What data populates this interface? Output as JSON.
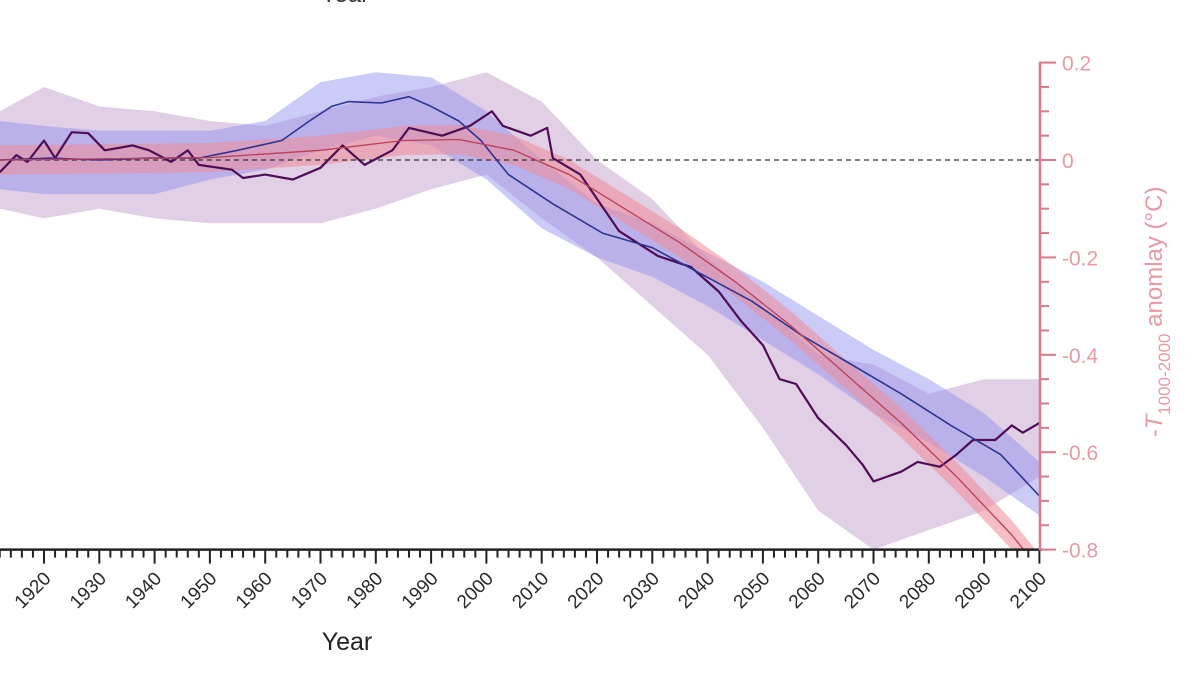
{
  "chart_data": {
    "type": "line",
    "top_clipped_label": "Year",
    "xlabel": "Year",
    "ylabel": {
      "prefix": "-T",
      "subscript": "1000-2000",
      "suffix": " anomlay (°C)"
    },
    "xlim": [
      1912,
      2100
    ],
    "ylim": [
      -0.8,
      0.2
    ],
    "x_ticks": [
      "1920",
      "1930",
      "1940",
      "1950",
      "1960",
      "1970",
      "1980",
      "1990",
      "2000",
      "2010",
      "2020",
      "2030",
      "2040",
      "2050",
      "2060",
      "2070",
      "2080",
      "2090",
      "2100"
    ],
    "y_ticks": [
      "0.2",
      "0",
      "-0.2",
      "-0.4",
      "-0.6",
      "-0.8"
    ],
    "reference_line": {
      "y": 0,
      "style": "dashed"
    },
    "colors": {
      "purple_line": "#4e0d55",
      "blue_line": "#2e3590",
      "red_line": "#b8405a",
      "purple_band": "#c9a8d2",
      "blue_band": "#8c8cf0",
      "red_band": "#f08a96",
      "right_axis": "#d9798a",
      "bottom_axis": "#222222"
    },
    "bands": [
      {
        "id": "purple",
        "x": [
          1912,
          1920,
          1930,
          1940,
          1950,
          1960,
          1970,
          1980,
          1990,
          2000,
          2010,
          2020,
          2030,
          2040,
          2050,
          2060,
          2070,
          2080,
          2090,
          2100
        ],
        "upper": [
          0.1,
          0.15,
          0.11,
          0.1,
          0.08,
          0.07,
          0.1,
          0.13,
          0.15,
          0.18,
          0.12,
          0.0,
          -0.08,
          -0.2,
          -0.3,
          -0.4,
          -0.42,
          -0.48,
          -0.45,
          -0.45
        ],
        "lower": [
          -0.1,
          -0.12,
          -0.1,
          -0.12,
          -0.13,
          -0.13,
          -0.13,
          -0.1,
          -0.06,
          -0.03,
          -0.12,
          -0.2,
          -0.3,
          -0.4,
          -0.55,
          -0.72,
          -0.8,
          -0.76,
          -0.72,
          -0.65
        ]
      },
      {
        "id": "blue",
        "x": [
          1912,
          1920,
          1930,
          1940,
          1950,
          1960,
          1970,
          1980,
          1990,
          2000,
          2010,
          2020,
          2030,
          2040,
          2050,
          2060,
          2070,
          2080,
          2090,
          2100
        ],
        "upper": [
          0.08,
          0.07,
          0.06,
          0.06,
          0.06,
          0.08,
          0.16,
          0.18,
          0.17,
          0.1,
          0.0,
          -0.09,
          -0.13,
          -0.19,
          -0.25,
          -0.32,
          -0.39,
          -0.45,
          -0.52,
          -0.62
        ],
        "lower": [
          -0.06,
          -0.07,
          -0.07,
          -0.07,
          -0.04,
          -0.02,
          0.02,
          0.05,
          0.03,
          -0.04,
          -0.14,
          -0.2,
          -0.24,
          -0.3,
          -0.37,
          -0.44,
          -0.52,
          -0.58,
          -0.65,
          -0.73
        ]
      },
      {
        "id": "red",
        "x": [
          1912,
          1950,
          1970,
          1985,
          1995,
          2005,
          2015,
          2025,
          2035,
          2045,
          2055,
          2065,
          2075,
          2085,
          2095,
          2100
        ],
        "upper": [
          0.03,
          0.035,
          0.05,
          0.07,
          0.072,
          0.05,
          0.0,
          -0.07,
          -0.14,
          -0.22,
          -0.31,
          -0.41,
          -0.51,
          -0.62,
          -0.74,
          -0.81
        ],
        "lower": [
          -0.03,
          -0.025,
          -0.01,
          0.01,
          0.012,
          -0.01,
          -0.06,
          -0.13,
          -0.2,
          -0.28,
          -0.37,
          -0.47,
          -0.57,
          -0.68,
          -0.8,
          -0.87
        ]
      }
    ],
    "series": [
      {
        "id": "purple",
        "x": [
          1912,
          1915,
          1917,
          1920,
          1922,
          1925,
          1928,
          1931,
          1936,
          1939,
          1943,
          1946,
          1948,
          1954,
          1956,
          1960,
          1965,
          1970,
          1974,
          1978,
          1983,
          1986,
          1992,
          1997,
          2001,
          2003,
          2008,
          2011,
          2012,
          2017,
          2024,
          2031,
          2037,
          2042,
          2046,
          2050,
          2053,
          2056,
          2060,
          2065,
          2068,
          2070,
          2075,
          2078,
          2082,
          2085,
          2088,
          2092,
          2095,
          2097,
          2100
        ],
        "y": [
          -0.025,
          0.01,
          -0.004,
          0.04,
          0.004,
          0.057,
          0.055,
          0.02,
          0.03,
          0.02,
          -0.004,
          0.02,
          -0.01,
          -0.02,
          -0.037,
          -0.03,
          -0.04,
          -0.016,
          0.03,
          -0.01,
          0.02,
          0.066,
          0.05,
          0.07,
          0.1,
          0.07,
          0.05,
          0.066,
          0.004,
          -0.03,
          -0.146,
          -0.197,
          -0.22,
          -0.27,
          -0.33,
          -0.38,
          -0.45,
          -0.46,
          -0.53,
          -0.585,
          -0.625,
          -0.66,
          -0.64,
          -0.62,
          -0.63,
          -0.605,
          -0.575,
          -0.575,
          -0.545,
          -0.56,
          -0.54
        ]
      },
      {
        "id": "blue",
        "x": [
          1912,
          1921,
          1930,
          1939,
          1948,
          1955,
          1963,
          1968,
          1972,
          1975,
          1981,
          1986,
          1990,
          1995,
          1999,
          2004,
          2012,
          2021,
          2030,
          2039,
          2048,
          2057,
          2066,
          2075,
          2084,
          2093,
          2100
        ],
        "y": [
          0,
          0.004,
          0,
          0.004,
          0.004,
          0.02,
          0.04,
          0.08,
          0.11,
          0.12,
          0.117,
          0.13,
          0.11,
          0.08,
          0.04,
          -0.03,
          -0.09,
          -0.15,
          -0.18,
          -0.235,
          -0.29,
          -0.36,
          -0.42,
          -0.48,
          -0.545,
          -0.605,
          -0.69
        ]
      },
      {
        "id": "red",
        "x": [
          1912,
          1950,
          1970,
          1985,
          1995,
          2005,
          2015,
          2025,
          2035,
          2045,
          2055,
          2065,
          2075,
          2085,
          2095,
          2100
        ],
        "y": [
          0.0,
          0.005,
          0.02,
          0.04,
          0.042,
          0.02,
          -0.03,
          -0.1,
          -0.17,
          -0.25,
          -0.34,
          -0.44,
          -0.54,
          -0.65,
          -0.77,
          -0.84
        ]
      }
    ]
  }
}
